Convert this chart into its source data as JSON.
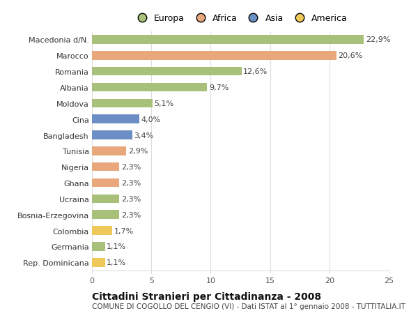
{
  "categories": [
    "Rep. Dominicana",
    "Germania",
    "Colombia",
    "Bosnia-Erzegovina",
    "Ucraina",
    "Ghana",
    "Nigeria",
    "Tunisia",
    "Bangladesh",
    "Cina",
    "Moldova",
    "Albania",
    "Romania",
    "Marocco",
    "Macedonia d/N."
  ],
  "values": [
    1.1,
    1.1,
    1.7,
    2.3,
    2.3,
    2.3,
    2.3,
    2.9,
    3.4,
    4.0,
    5.1,
    9.7,
    12.6,
    20.6,
    22.9
  ],
  "continents": [
    "America",
    "Europa",
    "America",
    "Europa",
    "Europa",
    "Africa",
    "Africa",
    "Africa",
    "Asia",
    "Asia",
    "Europa",
    "Europa",
    "Europa",
    "Africa",
    "Europa"
  ],
  "colors": {
    "Europa": "#a8c07a",
    "Africa": "#e8a87c",
    "Asia": "#6b8ec4",
    "America": "#f0c85a"
  },
  "legend_order": [
    "Europa",
    "Africa",
    "Asia",
    "America"
  ],
  "xlim": [
    0,
    25
  ],
  "xticks": [
    0,
    5,
    10,
    15,
    20,
    25
  ],
  "title": "Cittadini Stranieri per Cittadinanza - 2008",
  "subtitle": "COMUNE DI COGOLLO DEL CENGIO (VI) - Dati ISTAT al 1° gennaio 2008 - TUTTITALIA.IT",
  "bar_height": 0.55,
  "background_color": "#ffffff",
  "grid_color": "#dddddd",
  "label_fontsize": 8,
  "value_fontsize": 8,
  "title_fontsize": 10,
  "subtitle_fontsize": 7.5
}
